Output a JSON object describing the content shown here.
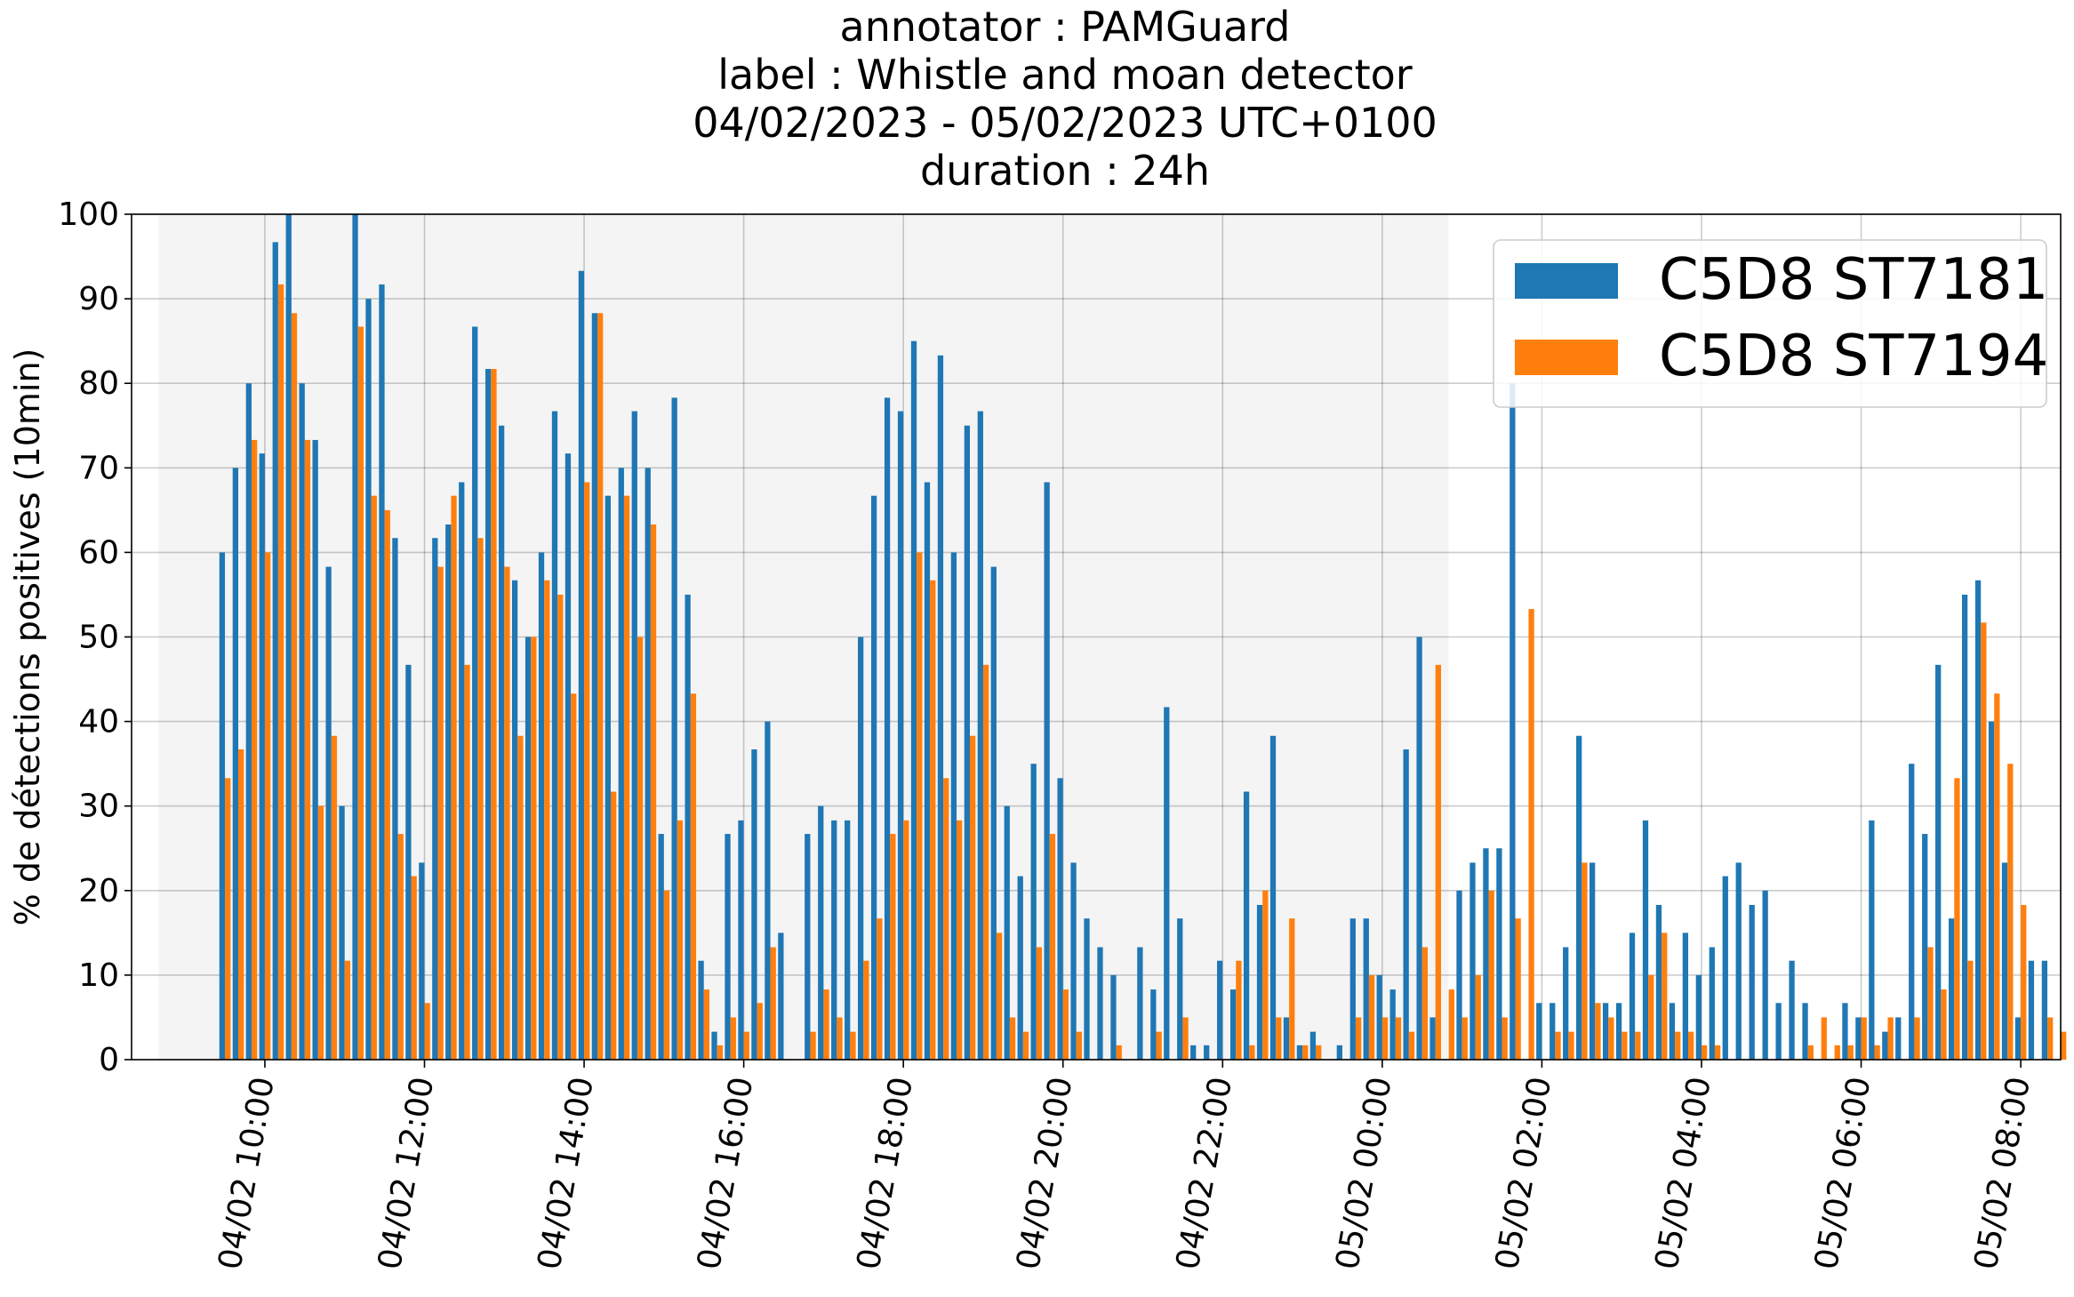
{
  "chart_data": {
    "type": "bar",
    "title_lines": [
      "annotator : PAMGuard",
      "label : Whistle and moan detector",
      "04/02/2023 - 05/02/2023 UTC+0100",
      "duration : 24h"
    ],
    "xlabel": "",
    "ylabel": "% de détections positives (10min)",
    "ylim": [
      0,
      100
    ],
    "y_ticks": [
      0,
      10,
      20,
      30,
      40,
      50,
      60,
      70,
      80,
      90,
      100
    ],
    "x_ticks": [
      {
        "hour": 10,
        "label": "04/02 10:00"
      },
      {
        "hour": 12,
        "label": "04/02 12:00"
      },
      {
        "hour": 14,
        "label": "04/02 14:00"
      },
      {
        "hour": 16,
        "label": "04/02 16:00"
      },
      {
        "hour": 18,
        "label": "04/02 18:00"
      },
      {
        "hour": 20,
        "label": "04/02 20:00"
      },
      {
        "hour": 22,
        "label": "04/02 22:00"
      },
      {
        "hour": 24,
        "label": "05/02 00:00"
      },
      {
        "hour": 26,
        "label": "05/02 02:00"
      },
      {
        "hour": 28,
        "label": "05/02 04:00"
      },
      {
        "hour": 30,
        "label": "05/02 06:00"
      },
      {
        "hour": 32,
        "label": "05/02 08:00"
      }
    ],
    "x_start_hour": 9.5,
    "bin_minutes": 10,
    "shaded_region_hours": [
      8.67,
      24.83
    ],
    "grid": true,
    "legend_position": "top-right",
    "series": [
      {
        "name": "C5D8 ST7181",
        "color": "#1f77b4",
        "values": [
          60,
          70,
          80,
          71.7,
          96.7,
          100,
          80,
          73.3,
          58.3,
          30,
          100,
          90,
          91.7,
          61.7,
          46.7,
          23.3,
          61.7,
          63.3,
          68.3,
          86.7,
          81.7,
          75,
          56.7,
          50,
          60,
          76.7,
          71.7,
          93.3,
          88.3,
          66.7,
          70,
          76.7,
          70,
          26.7,
          78.3,
          55,
          11.7,
          3.3,
          26.7,
          28.3,
          36.7,
          40,
          15,
          0,
          26.7,
          30,
          28.3,
          28.3,
          50,
          66.7,
          78.3,
          76.7,
          85,
          68.3,
          83.3,
          60,
          75,
          76.7,
          58.3,
          30,
          21.7,
          35,
          68.3,
          33.3,
          23.3,
          16.7,
          13.3,
          10,
          0,
          13.3,
          8.3,
          41.7,
          16.7,
          1.7,
          1.7,
          11.7,
          8.3,
          31.7,
          18.3,
          38.3,
          5,
          1.7,
          3.3,
          0,
          1.7,
          16.7,
          16.7,
          10,
          8.3,
          36.7,
          50,
          5,
          0,
          20,
          23.3,
          25,
          25,
          80,
          0,
          6.7,
          6.7,
          13.3,
          38.3,
          23.3,
          6.7,
          6.7,
          15,
          28.3,
          18.3,
          6.7,
          15,
          10,
          13.3,
          21.7,
          23.3,
          18.3,
          20,
          6.7,
          11.7,
          6.7,
          0,
          0,
          6.7,
          5,
          28.3,
          3.3,
          5,
          35,
          26.7,
          46.7,
          16.7,
          55,
          56.7,
          40,
          23.3,
          5,
          11.7,
          11.7
        ]
      },
      {
        "name": "C5D8 ST7194",
        "color": "#ff7f0e",
        "values": [
          33.3,
          36.7,
          73.3,
          60,
          91.7,
          88.3,
          73.3,
          30,
          38.3,
          11.7,
          86.7,
          66.7,
          65,
          26.7,
          21.7,
          6.7,
          58.3,
          66.7,
          46.7,
          61.7,
          81.7,
          58.3,
          38.3,
          50,
          56.7,
          55,
          43.3,
          68.3,
          88.3,
          31.7,
          66.7,
          50,
          63.3,
          20,
          28.3,
          43.3,
          8.3,
          1.7,
          5,
          3.3,
          6.7,
          13.3,
          0,
          0,
          3.3,
          8.3,
          5,
          3.3,
          11.7,
          16.7,
          26.7,
          28.3,
          60,
          56.7,
          33.3,
          28.3,
          38.3,
          46.7,
          15,
          5,
          3.3,
          13.3,
          26.7,
          8.3,
          3.3,
          0,
          0,
          1.7,
          0,
          0,
          3.3,
          0,
          5,
          0,
          0,
          0,
          11.7,
          1.7,
          20,
          5,
          16.7,
          1.7,
          1.7,
          0,
          0,
          5,
          10,
          5,
          5,
          3.3,
          13.3,
          46.7,
          8.3,
          5,
          10,
          20,
          5,
          16.7,
          53.3,
          0,
          3.3,
          3.3,
          23.3,
          6.7,
          5,
          3.3,
          3.3,
          10,
          15,
          3.3,
          3.3,
          1.7,
          1.7,
          0,
          0,
          0,
          0,
          0,
          0,
          1.7,
          5,
          1.7,
          1.7,
          5,
          1.7,
          5,
          0,
          5,
          13.3,
          8.3,
          33.3,
          11.7,
          51.7,
          43.3,
          35,
          18.3,
          0,
          5,
          3.3
        ]
      }
    ]
  }
}
